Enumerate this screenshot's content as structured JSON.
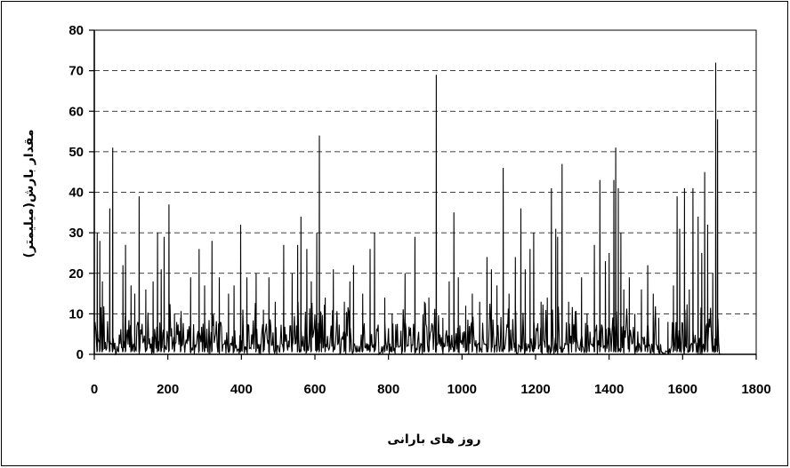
{
  "chart_data": {
    "type": "line",
    "title": "",
    "xlabel": "روز های بارانی",
    "ylabel": "مقدار بارش(میلیمتر)",
    "xlim": [
      0,
      1800
    ],
    "ylim": [
      0,
      80
    ],
    "x_ticks": [
      "0",
      "200",
      "400",
      "600",
      "800",
      "1000",
      "1200",
      "1400",
      "1600",
      "1800"
    ],
    "y_ticks": [
      "0",
      "10",
      "20",
      "30",
      "40",
      "50",
      "60",
      "70",
      "80"
    ],
    "grid": "horizontal-dashed",
    "legend": "none",
    "line_color": "#000000",
    "data_end_x": 1700,
    "peaks": [
      {
        "x": 8,
        "y": 30
      },
      {
        "x": 15,
        "y": 28
      },
      {
        "x": 22,
        "y": 18
      },
      {
        "x": 42,
        "y": 36
      },
      {
        "x": 50,
        "y": 51
      },
      {
        "x": 78,
        "y": 22
      },
      {
        "x": 85,
        "y": 27
      },
      {
        "x": 100,
        "y": 17
      },
      {
        "x": 110,
        "y": 15
      },
      {
        "x": 122,
        "y": 39
      },
      {
        "x": 140,
        "y": 16
      },
      {
        "x": 160,
        "y": 18
      },
      {
        "x": 172,
        "y": 30
      },
      {
        "x": 182,
        "y": 21
      },
      {
        "x": 190,
        "y": 29
      },
      {
        "x": 203,
        "y": 37
      },
      {
        "x": 218,
        "y": 10
      },
      {
        "x": 235,
        "y": 9
      },
      {
        "x": 262,
        "y": 19
      },
      {
        "x": 285,
        "y": 26
      },
      {
        "x": 300,
        "y": 17
      },
      {
        "x": 320,
        "y": 28
      },
      {
        "x": 340,
        "y": 19
      },
      {
        "x": 365,
        "y": 15
      },
      {
        "x": 380,
        "y": 17
      },
      {
        "x": 398,
        "y": 32
      },
      {
        "x": 415,
        "y": 19
      },
      {
        "x": 440,
        "y": 20
      },
      {
        "x": 460,
        "y": 11
      },
      {
        "x": 475,
        "y": 19
      },
      {
        "x": 492,
        "y": 13
      },
      {
        "x": 515,
        "y": 27
      },
      {
        "x": 538,
        "y": 20
      },
      {
        "x": 553,
        "y": 27
      },
      {
        "x": 562,
        "y": 34
      },
      {
        "x": 578,
        "y": 26
      },
      {
        "x": 590,
        "y": 18
      },
      {
        "x": 605,
        "y": 30
      },
      {
        "x": 612,
        "y": 54
      },
      {
        "x": 628,
        "y": 14
      },
      {
        "x": 650,
        "y": 21
      },
      {
        "x": 680,
        "y": 13
      },
      {
        "x": 695,
        "y": 18
      },
      {
        "x": 705,
        "y": 22
      },
      {
        "x": 730,
        "y": 15
      },
      {
        "x": 750,
        "y": 26
      },
      {
        "x": 762,
        "y": 30
      },
      {
        "x": 790,
        "y": 14
      },
      {
        "x": 810,
        "y": 10
      },
      {
        "x": 845,
        "y": 20
      },
      {
        "x": 872,
        "y": 29
      },
      {
        "x": 898,
        "y": 13
      },
      {
        "x": 910,
        "y": 14
      },
      {
        "x": 930,
        "y": 69
      },
      {
        "x": 948,
        "y": 9
      },
      {
        "x": 965,
        "y": 18
      },
      {
        "x": 978,
        "y": 35
      },
      {
        "x": 990,
        "y": 19
      },
      {
        "x": 1010,
        "y": 12
      },
      {
        "x": 1028,
        "y": 15
      },
      {
        "x": 1048,
        "y": 13
      },
      {
        "x": 1068,
        "y": 24
      },
      {
        "x": 1080,
        "y": 21
      },
      {
        "x": 1095,
        "y": 17
      },
      {
        "x": 1112,
        "y": 46
      },
      {
        "x": 1128,
        "y": 15
      },
      {
        "x": 1145,
        "y": 24
      },
      {
        "x": 1160,
        "y": 36
      },
      {
        "x": 1172,
        "y": 21
      },
      {
        "x": 1185,
        "y": 26
      },
      {
        "x": 1195,
        "y": 30
      },
      {
        "x": 1215,
        "y": 13
      },
      {
        "x": 1232,
        "y": 14
      },
      {
        "x": 1243,
        "y": 41
      },
      {
        "x": 1255,
        "y": 31
      },
      {
        "x": 1260,
        "y": 29
      },
      {
        "x": 1272,
        "y": 47
      },
      {
        "x": 1290,
        "y": 13
      },
      {
        "x": 1310,
        "y": 10
      },
      {
        "x": 1325,
        "y": 19
      },
      {
        "x": 1340,
        "y": 10
      },
      {
        "x": 1360,
        "y": 27
      },
      {
        "x": 1375,
        "y": 43
      },
      {
        "x": 1390,
        "y": 23
      },
      {
        "x": 1400,
        "y": 25
      },
      {
        "x": 1413,
        "y": 43
      },
      {
        "x": 1418,
        "y": 51
      },
      {
        "x": 1425,
        "y": 41
      },
      {
        "x": 1432,
        "y": 30
      },
      {
        "x": 1440,
        "y": 16
      },
      {
        "x": 1455,
        "y": 19
      },
      {
        "x": 1470,
        "y": 10
      },
      {
        "x": 1488,
        "y": 16
      },
      {
        "x": 1505,
        "y": 22
      },
      {
        "x": 1520,
        "y": 15
      },
      {
        "x": 1535,
        "y": 9
      },
      {
        "x": 1560,
        "y": 8
      },
      {
        "x": 1575,
        "y": 17
      },
      {
        "x": 1585,
        "y": 39
      },
      {
        "x": 1592,
        "y": 31
      },
      {
        "x": 1605,
        "y": 41
      },
      {
        "x": 1618,
        "y": 16
      },
      {
        "x": 1628,
        "y": 41
      },
      {
        "x": 1642,
        "y": 34
      },
      {
        "x": 1652,
        "y": 25
      },
      {
        "x": 1660,
        "y": 45
      },
      {
        "x": 1668,
        "y": 32
      },
      {
        "x": 1682,
        "y": 20
      },
      {
        "x": 1690,
        "y": 72
      },
      {
        "x": 1695,
        "y": 58
      }
    ]
  }
}
